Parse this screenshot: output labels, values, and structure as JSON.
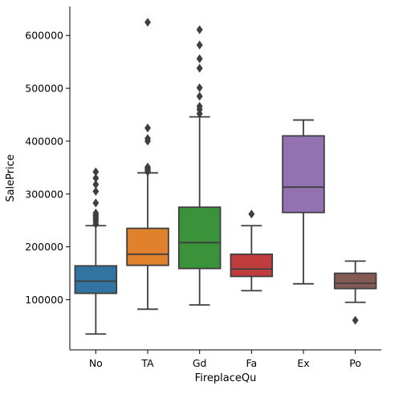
{
  "chart_data": {
    "type": "box",
    "xlabel": "FireplaceQu",
    "ylabel": "SalePrice",
    "ylim": [
      5000,
      655000
    ],
    "yticks": [
      100000,
      200000,
      300000,
      400000,
      500000,
      600000
    ],
    "yticklabels": [
      "100000",
      "200000",
      "300000",
      "400000",
      "500000",
      "600000"
    ],
    "categories": [
      "No",
      "TA",
      "Gd",
      "Fa",
      "Ex",
      "Po"
    ],
    "colors": [
      "#3274a1",
      "#e1812c",
      "#3a923a",
      "#c03d3e",
      "#9372b2",
      "#845b53"
    ],
    "edge_color": "#3f3f3f",
    "grid": false,
    "boxes": [
      {
        "category": "No",
        "whisker_low": 35000,
        "q1": 112000,
        "median": 135000,
        "q3": 164000,
        "whisker_high": 240000,
        "outliers": [
          243000,
          248000,
          252000,
          256000,
          260000,
          264000,
          283000,
          305000,
          318000,
          330000,
          342000
        ]
      },
      {
        "category": "TA",
        "whisker_low": 82000,
        "q1": 165000,
        "median": 186000,
        "q3": 235000,
        "whisker_high": 340000,
        "outliers": [
          342000,
          345000,
          348000,
          351000,
          400000,
          405000,
          425000,
          625000
        ]
      },
      {
        "category": "Gd",
        "whisker_low": 90000,
        "q1": 159000,
        "median": 208000,
        "q3": 275000,
        "whisker_high": 446000,
        "outliers": [
          452000,
          460000,
          466000,
          485000,
          501000,
          538000,
          556000,
          582000,
          611000
        ]
      },
      {
        "category": "Fa",
        "whisker_low": 117000,
        "q1": 144000,
        "median": 158000,
        "q3": 186000,
        "whisker_high": 240000,
        "outliers": [
          262000
        ]
      },
      {
        "category": "Ex",
        "whisker_low": 130000,
        "q1": 265000,
        "median": 313000,
        "q3": 410000,
        "whisker_high": 440000,
        "outliers": []
      },
      {
        "category": "Po",
        "whisker_low": 95000,
        "q1": 121000,
        "median": 131000,
        "q3": 150000,
        "whisker_high": 173000,
        "outliers": [
          61000
        ]
      }
    ]
  }
}
